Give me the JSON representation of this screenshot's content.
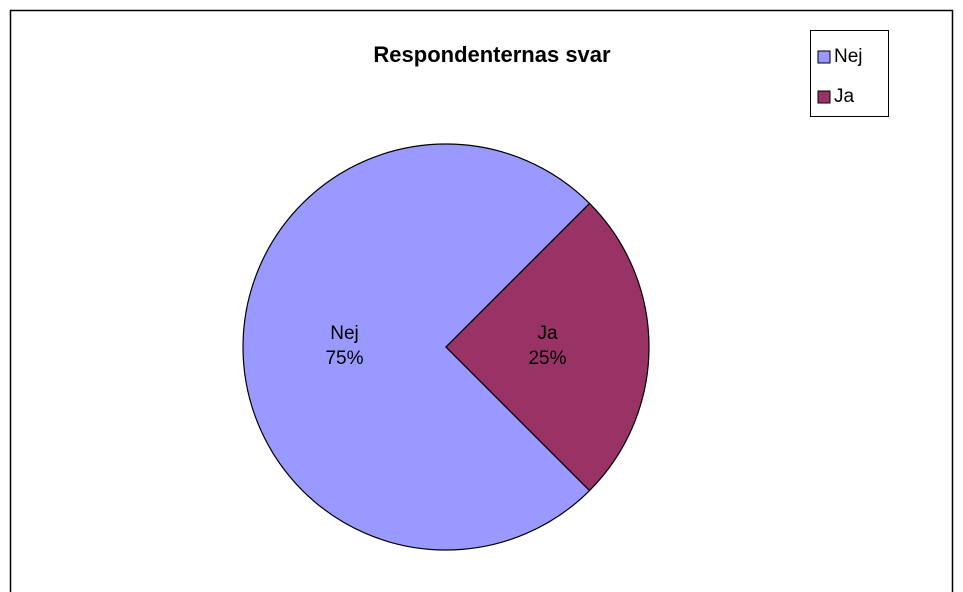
{
  "chart_data": {
    "type": "pie",
    "title": "Respondenternas svar",
    "categories": [
      "Nej",
      "Ja"
    ],
    "values": [
      75,
      25
    ],
    "value_labels": [
      "75%",
      "25%"
    ],
    "colors": [
      "#9999ff",
      "#993366"
    ],
    "legend": "top-right"
  }
}
